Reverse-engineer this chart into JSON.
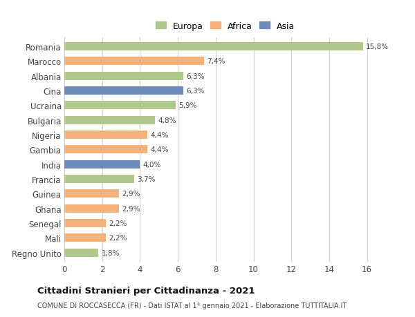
{
  "countries": [
    "Romania",
    "Marocco",
    "Albania",
    "Cina",
    "Ucraina",
    "Bulgaria",
    "Nigeria",
    "Gambia",
    "India",
    "Francia",
    "Guinea",
    "Ghana",
    "Senegal",
    "Mali",
    "Regno Unito"
  ],
  "values": [
    15.8,
    7.4,
    6.3,
    6.3,
    5.9,
    4.8,
    4.4,
    4.4,
    4.0,
    3.7,
    2.9,
    2.9,
    2.2,
    2.2,
    1.8
  ],
  "labels": [
    "15,8%",
    "7,4%",
    "6,3%",
    "6,3%",
    "5,9%",
    "4,8%",
    "4,4%",
    "4,4%",
    "4,0%",
    "3,7%",
    "2,9%",
    "2,9%",
    "2,2%",
    "2,2%",
    "1,8%"
  ],
  "continents": [
    "Europa",
    "Africa",
    "Europa",
    "Asia",
    "Europa",
    "Europa",
    "Africa",
    "Africa",
    "Asia",
    "Europa",
    "Africa",
    "Africa",
    "Africa",
    "Africa",
    "Europa"
  ],
  "colors": {
    "Europa": "#aec98a",
    "Africa": "#f4b27a",
    "Asia": "#6b8cba"
  },
  "xlim": [
    0,
    17
  ],
  "xticks": [
    0,
    2,
    4,
    6,
    8,
    10,
    12,
    14,
    16
  ],
  "title": "Cittadini Stranieri per Cittadinanza - 2021",
  "subtitle": "COMUNE DI ROCCASECCA (FR) - Dati ISTAT al 1° gennaio 2021 - Elaborazione TUTTITALIA.IT",
  "background_color": "#ffffff",
  "grid_color": "#d0d0d0",
  "bar_height": 0.55
}
